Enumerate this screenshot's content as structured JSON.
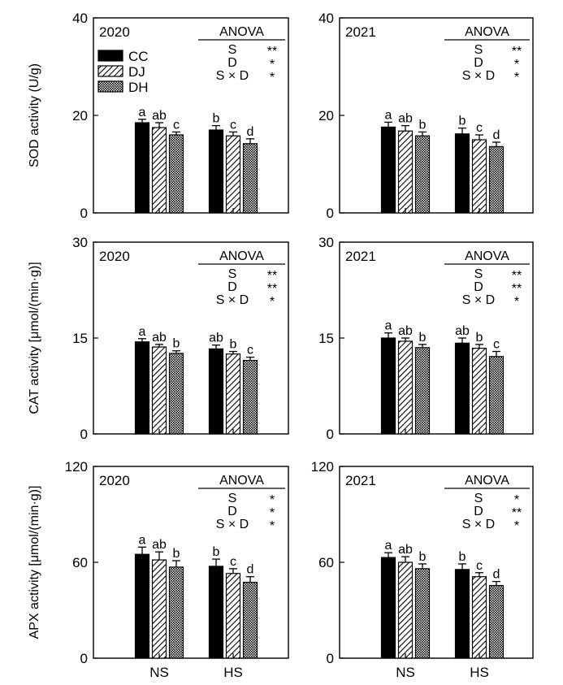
{
  "figure": {
    "x_categories": [
      "NS",
      "HS"
    ]
  },
  "legend": {
    "entries": [
      {
        "label": "CC",
        "pattern": "solid"
      },
      {
        "label": "DJ",
        "pattern": "hatch"
      },
      {
        "label": "DH",
        "pattern": "dots"
      }
    ]
  },
  "anova_header": "ANOVA",
  "chart_data": [
    {
      "type": "bar",
      "row": 0,
      "col": 0,
      "year_label": "2020",
      "ylabel": "SOD activity (U/g)",
      "ylim": [
        0,
        40
      ],
      "yticks": [
        0,
        20,
        40
      ],
      "categories": [
        "NS",
        "HS"
      ],
      "series": [
        {
          "name": "CC",
          "values": [
            18.5,
            17.0
          ],
          "errors": [
            0.7,
            0.9
          ],
          "letters": [
            "a",
            "b"
          ]
        },
        {
          "name": "DJ",
          "values": [
            17.5,
            15.8
          ],
          "errors": [
            1.0,
            0.8
          ],
          "letters": [
            "ab",
            "c"
          ]
        },
        {
          "name": "DH",
          "values": [
            16.0,
            14.2
          ],
          "errors": [
            0.6,
            1.0
          ],
          "letters": [
            "c",
            "d"
          ]
        }
      ],
      "anova": [
        {
          "term": "S",
          "sig": "**"
        },
        {
          "term": "D",
          "sig": "*"
        },
        {
          "term": "S × D",
          "sig": "*"
        }
      ]
    },
    {
      "type": "bar",
      "row": 0,
      "col": 1,
      "year_label": "2021",
      "ylabel": "",
      "ylim": [
        0,
        40
      ],
      "yticks": [
        0,
        20,
        40
      ],
      "categories": [
        "NS",
        "HS"
      ],
      "series": [
        {
          "name": "CC",
          "values": [
            17.6,
            16.2
          ],
          "errors": [
            1.0,
            1.2
          ],
          "letters": [
            "a",
            "b"
          ]
        },
        {
          "name": "DJ",
          "values": [
            16.8,
            15.0
          ],
          "errors": [
            1.1,
            1.0
          ],
          "letters": [
            "ab",
            "c"
          ]
        },
        {
          "name": "DH",
          "values": [
            15.8,
            13.6
          ],
          "errors": [
            0.8,
            0.9
          ],
          "letters": [
            "b",
            "d"
          ]
        }
      ],
      "anova": [
        {
          "term": "S",
          "sig": "**"
        },
        {
          "term": "D",
          "sig": "*"
        },
        {
          "term": "S × D",
          "sig": "*"
        }
      ]
    },
    {
      "type": "bar",
      "row": 1,
      "col": 0,
      "year_label": "2020",
      "ylabel": "CAT activity [μmol/(min·g)]",
      "ylim": [
        0,
        30
      ],
      "yticks": [
        0,
        15,
        30
      ],
      "categories": [
        "NS",
        "HS"
      ],
      "series": [
        {
          "name": "CC",
          "values": [
            14.4,
            13.3
          ],
          "errors": [
            0.5,
            0.6
          ],
          "letters": [
            "a",
            "ab"
          ]
        },
        {
          "name": "DJ",
          "values": [
            13.6,
            12.5
          ],
          "errors": [
            0.4,
            0.4
          ],
          "letters": [
            "ab",
            "b"
          ]
        },
        {
          "name": "DH",
          "values": [
            12.6,
            11.5
          ],
          "errors": [
            0.4,
            0.5
          ],
          "letters": [
            "b",
            "c"
          ]
        }
      ],
      "anova": [
        {
          "term": "S",
          "sig": "**"
        },
        {
          "term": "D",
          "sig": "**"
        },
        {
          "term": "S × D",
          "sig": "*"
        }
      ]
    },
    {
      "type": "bar",
      "row": 1,
      "col": 1,
      "year_label": "2021",
      "ylabel": "",
      "ylim": [
        0,
        30
      ],
      "yticks": [
        0,
        15,
        30
      ],
      "categories": [
        "NS",
        "HS"
      ],
      "series": [
        {
          "name": "CC",
          "values": [
            15.0,
            14.2
          ],
          "errors": [
            0.8,
            0.8
          ],
          "letters": [
            "a",
            "ab"
          ]
        },
        {
          "name": "DJ",
          "values": [
            14.5,
            13.4
          ],
          "errors": [
            0.5,
            0.6
          ],
          "letters": [
            "ab",
            "b"
          ]
        },
        {
          "name": "DH",
          "values": [
            13.5,
            12.1
          ],
          "errors": [
            0.5,
            0.8
          ],
          "letters": [
            "b",
            "c"
          ]
        }
      ],
      "anova": [
        {
          "term": "S",
          "sig": "**"
        },
        {
          "term": "D",
          "sig": "**"
        },
        {
          "term": "S × D",
          "sig": "*"
        }
      ]
    },
    {
      "type": "bar",
      "row": 2,
      "col": 0,
      "year_label": "2020",
      "ylabel": "APX activity [μmol/(min·g)]",
      "ylim": [
        0,
        120
      ],
      "yticks": [
        0,
        60,
        120
      ],
      "categories": [
        "NS",
        "HS"
      ],
      "series": [
        {
          "name": "CC",
          "values": [
            65.0,
            57.5
          ],
          "errors": [
            4.5,
            4.5
          ],
          "letters": [
            "a",
            "b"
          ]
        },
        {
          "name": "DJ",
          "values": [
            61.5,
            53.0
          ],
          "errors": [
            5.0,
            3.0
          ],
          "letters": [
            "ab",
            "c"
          ]
        },
        {
          "name": "DH",
          "values": [
            57.0,
            47.5
          ],
          "errors": [
            4.0,
            3.5
          ],
          "letters": [
            "b",
            "d"
          ]
        }
      ],
      "anova": [
        {
          "term": "S",
          "sig": "*"
        },
        {
          "term": "D",
          "sig": "*"
        },
        {
          "term": "S × D",
          "sig": "*"
        }
      ]
    },
    {
      "type": "bar",
      "row": 2,
      "col": 1,
      "year_label": "2021",
      "ylabel": "",
      "ylim": [
        0,
        120
      ],
      "yticks": [
        0,
        60,
        120
      ],
      "categories": [
        "NS",
        "HS"
      ],
      "series": [
        {
          "name": "CC",
          "values": [
            63.0,
            55.5
          ],
          "errors": [
            3.0,
            3.5
          ],
          "letters": [
            "a",
            "b"
          ]
        },
        {
          "name": "DJ",
          "values": [
            60.0,
            51.0
          ],
          "errors": [
            3.5,
            2.5
          ],
          "letters": [
            "ab",
            "c"
          ]
        },
        {
          "name": "DH",
          "values": [
            56.0,
            45.5
          ],
          "errors": [
            3.0,
            2.5
          ],
          "letters": [
            "b",
            "d"
          ]
        }
      ],
      "anova": [
        {
          "term": "S",
          "sig": "*"
        },
        {
          "term": "D",
          "sig": "**"
        },
        {
          "term": "S × D",
          "sig": "*"
        }
      ]
    }
  ]
}
